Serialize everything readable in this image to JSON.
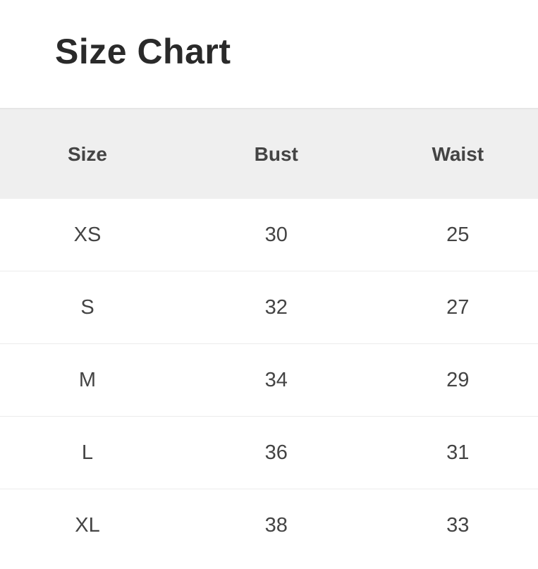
{
  "title": "Size Chart",
  "table": {
    "headers": [
      "Size",
      "Bust",
      "Waist"
    ],
    "rows": [
      [
        "XS",
        "30",
        "25"
      ],
      [
        "S",
        "32",
        "27"
      ],
      [
        "M",
        "34",
        "29"
      ],
      [
        "L",
        "36",
        "31"
      ],
      [
        "XL",
        "38",
        "33"
      ]
    ]
  },
  "colors": {
    "header_bg": "#efefef",
    "text": "#444444"
  }
}
